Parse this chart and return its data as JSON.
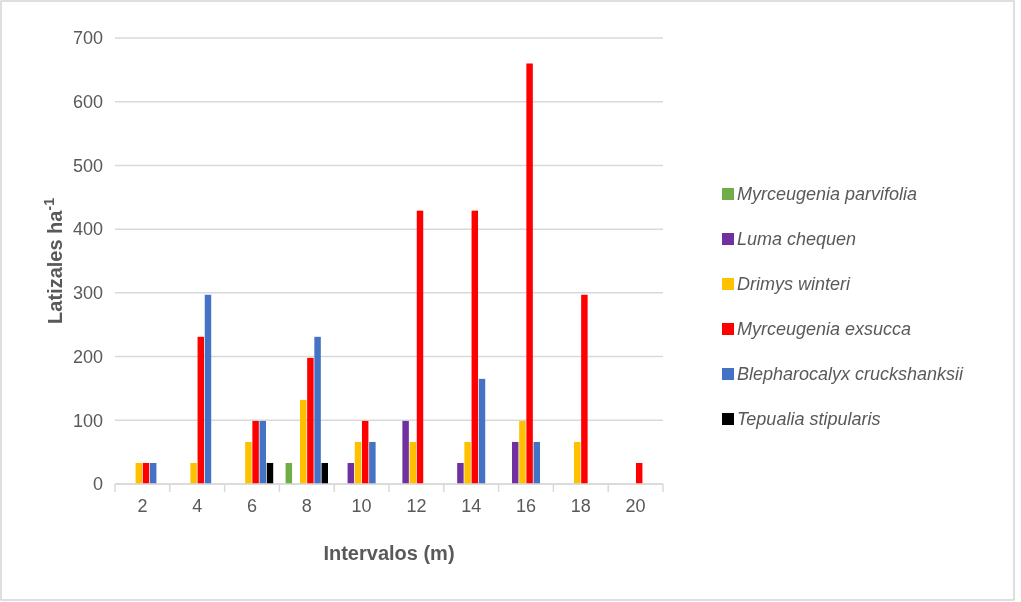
{
  "chart_data": {
    "type": "bar",
    "xlabel": "Intervalos (m)",
    "ylabel": "Latizales ha$^{-1}$",
    "categories": [
      "2",
      "4",
      "6",
      "8",
      "10",
      "12",
      "14",
      "16",
      "18",
      "20"
    ],
    "series": [
      {
        "name": "Myrceugenia parvifolia",
        "color": "#70ad47",
        "values": [
          null,
          null,
          null,
          33,
          null,
          null,
          null,
          null,
          null,
          null
        ]
      },
      {
        "name": "Luma chequen",
        "color": "#7030a0",
        "values": [
          null,
          null,
          null,
          null,
          33,
          99,
          33,
          66,
          null,
          null
        ]
      },
      {
        "name": "Drimys winteri",
        "color": "#ffc000",
        "values": [
          33,
          33,
          66,
          132,
          66,
          66,
          66,
          99,
          66,
          null
        ]
      },
      {
        "name": "Myrceugenia exsucca",
        "color": "#ff0000",
        "values": [
          33,
          231,
          99,
          198,
          99,
          429,
          429,
          660,
          297,
          33
        ]
      },
      {
        "name": "Blepharocalyx cruckshanksii",
        "color": "#4472c4",
        "values": [
          33,
          297,
          99,
          231,
          66,
          null,
          165,
          66,
          null,
          null
        ]
      },
      {
        "name": "Tepualia stipularis",
        "color": "#000000",
        "values": [
          null,
          null,
          33,
          33,
          null,
          null,
          null,
          null,
          null,
          null
        ]
      }
    ],
    "ylim": [
      0,
      700
    ],
    "yticks": [
      0,
      100,
      200,
      300,
      400,
      500,
      600,
      700
    ],
    "grid": "y",
    "legend": "right"
  }
}
